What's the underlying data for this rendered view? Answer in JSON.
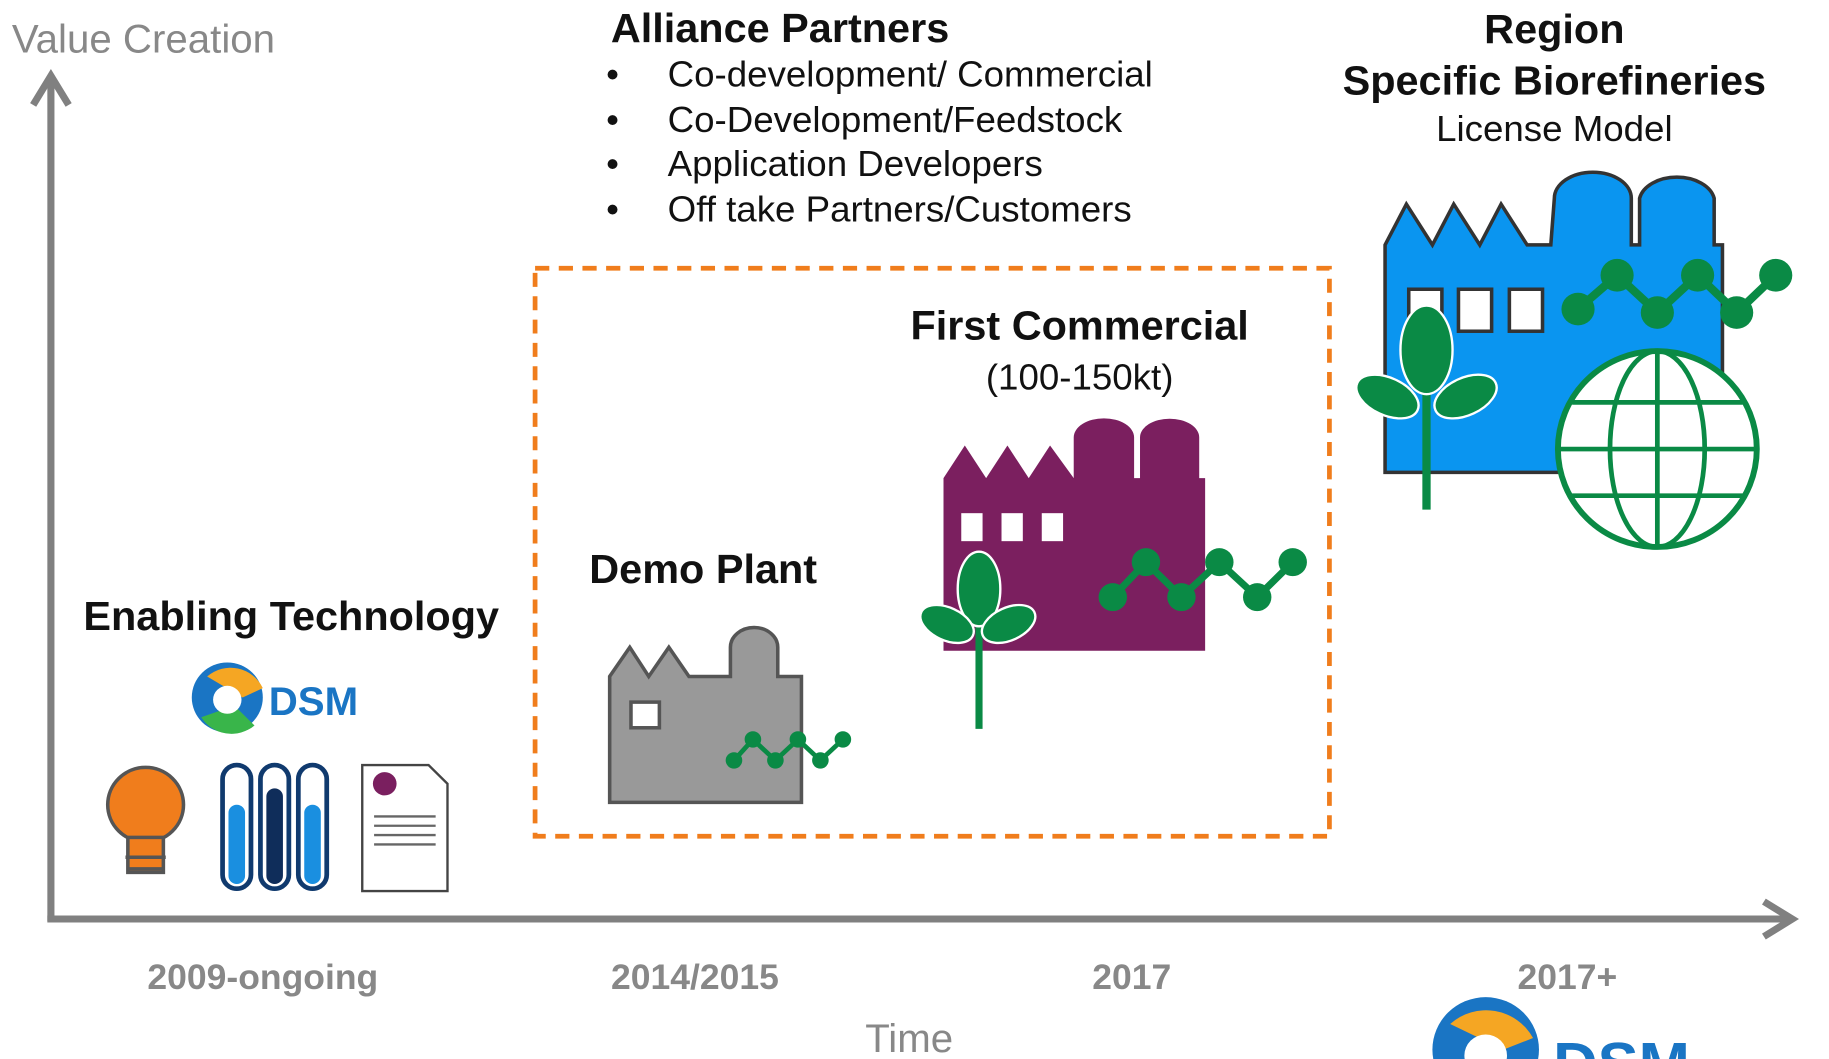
{
  "axes": {
    "y_label": "Value Creation",
    "x_label": "Time"
  },
  "alliance": {
    "title": "Alliance Partners",
    "items": [
      "Co-development/ Commercial",
      "Co-Development/Feedstock",
      "Application Developers",
      "Off take Partners/Customers"
    ]
  },
  "stages": [
    {
      "title": "Enabling Technology",
      "logo": "DSM",
      "period": "2009-ongoing"
    },
    {
      "title": "Demo Plant",
      "period": "2014/2015"
    },
    {
      "title": "First Commercial",
      "subtitle": "(100-150kt)",
      "period": "2017"
    },
    {
      "title_lines": [
        "Region",
        "Specific Biorefineries"
      ],
      "subtitle": "License Model",
      "period": "2017+"
    }
  ],
  "footer_logo": "DSM"
}
